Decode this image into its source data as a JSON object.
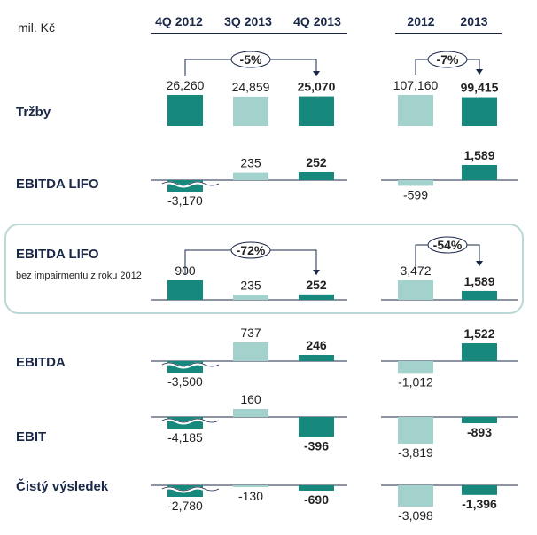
{
  "unit_label": "mil. Kč",
  "columns": {
    "quarterly": [
      "4Q 2012",
      "3Q 2013",
      "4Q 2013"
    ],
    "annual": [
      "2012",
      "2013"
    ]
  },
  "colors": {
    "dark_teal": "#16897c",
    "light_teal": "#a3d1cc",
    "axis": "#1a2848",
    "highlight_border": "#b9d8d6"
  },
  "chart_data": {
    "type": "bar",
    "unit": "mil. Kč",
    "rows": [
      {
        "label": "Tržby",
        "sublabel": "",
        "quarterly": [
          {
            "value": 26260,
            "label": "26,260"
          },
          {
            "value": 24859,
            "label": "24,859"
          },
          {
            "value": 25070,
            "label": "25,070"
          }
        ],
        "annual": [
          {
            "value": 107160,
            "label": "107,160"
          },
          {
            "value": 99415,
            "label": "99,415"
          }
        ],
        "quarterly_change": "-5%",
        "annual_change": "-7%"
      },
      {
        "label": "EBITDA LIFO",
        "sublabel": "",
        "quarterly": [
          {
            "value": -3170,
            "label": "-3,170"
          },
          {
            "value": 235,
            "label": "235"
          },
          {
            "value": 252,
            "label": "252"
          }
        ],
        "annual": [
          {
            "value": -599,
            "label": "-599"
          },
          {
            "value": 1589,
            "label": "1,589"
          }
        ],
        "quarterly_change": "",
        "annual_change": ""
      },
      {
        "label": "EBITDA LIFO",
        "sublabel": "bez impairmentu z roku 2012",
        "quarterly": [
          {
            "value": 900,
            "label": "900"
          },
          {
            "value": 235,
            "label": "235"
          },
          {
            "value": 252,
            "label": "252"
          }
        ],
        "annual": [
          {
            "value": 3472,
            "label": "3,472"
          },
          {
            "value": 1589,
            "label": "1,589"
          }
        ],
        "quarterly_change": "-72%",
        "annual_change": "-54%"
      },
      {
        "label": "EBITDA",
        "sublabel": "",
        "quarterly": [
          {
            "value": -3500,
            "label": "-3,500"
          },
          {
            "value": 737,
            "label": "737"
          },
          {
            "value": 246,
            "label": "246"
          }
        ],
        "annual": [
          {
            "value": -1012,
            "label": "-1,012"
          },
          {
            "value": 1522,
            "label": "1,522"
          }
        ],
        "quarterly_change": "",
        "annual_change": ""
      },
      {
        "label": "EBIT",
        "sublabel": "",
        "quarterly": [
          {
            "value": -4185,
            "label": "-4,185"
          },
          {
            "value": 160,
            "label": "160"
          },
          {
            "value": -396,
            "label": "-396"
          }
        ],
        "annual": [
          {
            "value": -3819,
            "label": "-3,819"
          },
          {
            "value": -893,
            "label": "-893"
          }
        ],
        "quarterly_change": "",
        "annual_change": ""
      },
      {
        "label": "Čistý výsledek",
        "sublabel": "",
        "quarterly": [
          {
            "value": -2780,
            "label": "-2,780"
          },
          {
            "value": -130,
            "label": "-130"
          },
          {
            "value": -690,
            "label": "-690"
          }
        ],
        "annual": [
          {
            "value": -3098,
            "label": "-3,098"
          },
          {
            "value": -1396,
            "label": "-1,396"
          }
        ],
        "quarterly_change": "",
        "annual_change": ""
      }
    ]
  }
}
